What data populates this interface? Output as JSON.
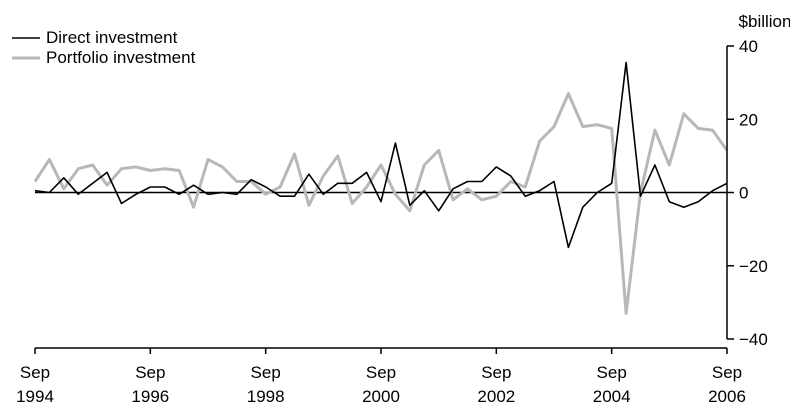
{
  "chart_data": {
    "type": "line",
    "title": "",
    "ylabel": "$billion",
    "xlabel": "",
    "ylim": [
      -40,
      40
    ],
    "yticks": [
      40,
      20,
      0,
      -20,
      -40
    ],
    "xlim": [
      "1994-09",
      "2006-09"
    ],
    "xticks": [
      {
        "month": "Sep",
        "year": "1994",
        "date": "1994-09"
      },
      {
        "month": "Sep",
        "year": "1996",
        "date": "1996-09"
      },
      {
        "month": "Sep",
        "year": "1998",
        "date": "1998-09"
      },
      {
        "month": "Sep",
        "year": "2000",
        "date": "2000-09"
      },
      {
        "month": "Sep",
        "year": "2002",
        "date": "2002-09"
      },
      {
        "month": "Sep",
        "year": "2004",
        "date": "2004-09"
      },
      {
        "month": "Sep",
        "year": "2006",
        "date": "2006-09"
      }
    ],
    "grid": false,
    "legend_position": "top-left",
    "x": [
      "1994-09",
      "1994-12",
      "1995-03",
      "1995-06",
      "1995-09",
      "1995-12",
      "1996-03",
      "1996-06",
      "1996-09",
      "1996-12",
      "1997-03",
      "1997-06",
      "1997-09",
      "1997-12",
      "1998-03",
      "1998-06",
      "1998-09",
      "1998-12",
      "1999-03",
      "1999-06",
      "1999-09",
      "1999-12",
      "2000-03",
      "2000-06",
      "2000-09",
      "2000-12",
      "2001-03",
      "2001-06",
      "2001-09",
      "2001-12",
      "2002-03",
      "2002-06",
      "2002-09",
      "2002-12",
      "2003-03",
      "2003-06",
      "2003-09",
      "2003-12",
      "2004-03",
      "2004-06",
      "2004-09",
      "2004-12",
      "2005-03",
      "2005-06",
      "2005-09",
      "2005-12",
      "2006-03",
      "2006-06",
      "2006-09"
    ],
    "series": [
      {
        "name": "Direct investment",
        "color": "#000000",
        "values": [
          0.5,
          0,
          4,
          -0.5,
          2.5,
          5.5,
          -3,
          -0.5,
          1.5,
          1.5,
          -0.5,
          2,
          -0.5,
          0,
          -0.5,
          3.5,
          1.5,
          -1,
          -1,
          5,
          -0.5,
          2.5,
          2.5,
          5.5,
          -2.5,
          13.5,
          -3.5,
          0.5,
          -5,
          1,
          3,
          3,
          7,
          4.5,
          -1,
          0.5,
          3,
          -15,
          -4,
          0,
          2.5,
          35.5,
          -1,
          7.5,
          -2.5,
          -4,
          -2.5,
          0.5,
          2.5
        ]
      },
      {
        "name": "Portfolio investment",
        "color": "#b8b8b8",
        "values": [
          3,
          9,
          1,
          6.5,
          7.5,
          2,
          6.5,
          7,
          6,
          6.5,
          6,
          -4,
          9,
          7,
          3,
          3,
          -0.5,
          1.5,
          10.5,
          -3.5,
          4.5,
          10,
          -3,
          1.5,
          7.5,
          -0.5,
          -5,
          7.5,
          11.5,
          -2,
          1,
          -2,
          -1,
          3,
          1.5,
          14,
          18,
          27,
          18,
          18.5,
          17.5,
          -33,
          0,
          17,
          7.5,
          21.5,
          17.5,
          17,
          11.5
        ]
      }
    ]
  }
}
